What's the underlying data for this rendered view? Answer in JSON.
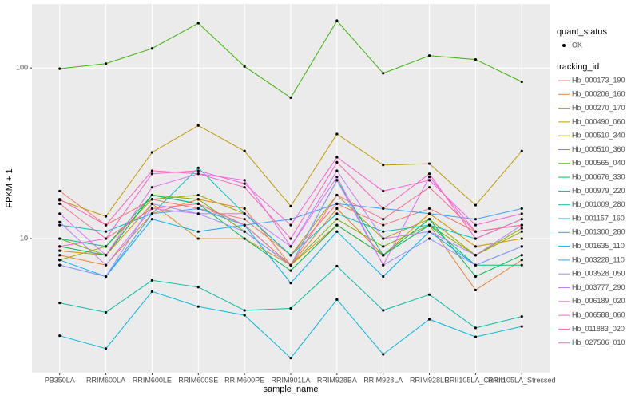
{
  "chart_data": {
    "type": "line",
    "log_y": true,
    "grid": true,
    "x_label": "sample_name",
    "y_label": "FPKM + 1",
    "legend_points_title": "quant_status",
    "legend_points_label": "OK",
    "legend_title": "tracking_id",
    "categories": [
      "PB350LA",
      "RRIM600LA",
      "RRIM600LE",
      "RRIM600SE",
      "RRIM600PE",
      "RRIM901LA",
      "RRIM928BA",
      "RRIM928LA",
      "RRIM928LE",
      "RRII105LA_Control",
      "RRII105LA_Stressed"
    ],
    "ylim": [
      1.64,
      237
    ],
    "yticks": [
      10,
      100
    ],
    "series": [
      {
        "name": "Hb_000173_190",
        "color": "#F8766D",
        "values": [
          19,
          12,
          17,
          15,
          13,
          8,
          16,
          12,
          15,
          11,
          12
        ]
      },
      {
        "name": "Hb_000206_160",
        "color": "#EA8331",
        "values": [
          8,
          7,
          14,
          17,
          15,
          7,
          15,
          8,
          12,
          5,
          7.5
        ]
      },
      {
        "name": "Hb_000270_170",
        "color": "#D89000",
        "values": [
          8.5,
          8,
          16,
          10,
          10,
          7,
          12,
          8,
          14,
          9,
          10
        ]
      },
      {
        "name": "Hb_000490_060",
        "color": "#C09B00",
        "values": [
          16.8,
          13.5,
          32,
          46,
          32.6,
          15.5,
          41,
          27,
          27.5,
          15.7,
          32.6
        ]
      },
      {
        "name": "Hb_000510_340",
        "color": "#A3A500",
        "values": [
          7.5,
          9,
          17,
          18,
          14,
          8,
          18,
          10,
          13,
          8,
          11
        ]
      },
      {
        "name": "Hb_000510_360",
        "color": "#7CAE00",
        "values": [
          10,
          8,
          18,
          17,
          11,
          7,
          13,
          9,
          12,
          8,
          11.5
        ]
      },
      {
        "name": "Hb_000565_040",
        "color": "#39B600",
        "values": [
          99,
          106,
          130,
          183,
          102,
          67,
          189,
          93,
          118,
          112,
          83
        ]
      },
      {
        "name": "Hb_000676_330",
        "color": "#00BB4E",
        "values": [
          9,
          8,
          18,
          16,
          10,
          6.5,
          12,
          8,
          13,
          6,
          8
        ]
      },
      {
        "name": "Hb_000979_220",
        "color": "#00BF7D",
        "values": [
          10,
          9,
          18,
          16,
          12,
          7,
          22,
          8,
          12,
          7,
          7
        ]
      },
      {
        "name": "Hb_001009_280",
        "color": "#00C1A3",
        "values": [
          4.2,
          3.7,
          5.7,
          5.2,
          3.8,
          3.9,
          6.9,
          3.8,
          4.7,
          3.0,
          3.5
        ]
      },
      {
        "name": "Hb_001157_160",
        "color": "#00BFC4",
        "values": [
          12,
          11,
          14,
          26,
          14,
          8,
          14,
          11,
          12,
          10,
          13
        ]
      },
      {
        "name": "Hb_001300_280",
        "color": "#00BAE0",
        "values": [
          2.7,
          2.27,
          4.9,
          4.0,
          3.56,
          2.0,
          4.4,
          2.1,
          3.37,
          2.66,
          3.06
        ]
      },
      {
        "name": "Hb_001635_110",
        "color": "#00B0F6",
        "values": [
          7.5,
          6,
          13,
          11,
          12,
          5.5,
          11,
          6,
          11,
          7,
          9
        ]
      },
      {
        "name": "Hb_003228_110",
        "color": "#35A2FF",
        "values": [
          7,
          6,
          14,
          15,
          12,
          13,
          16,
          15,
          14,
          13,
          15
        ]
      },
      {
        "name": "Hb_003528_050",
        "color": "#9590FF",
        "values": [
          7,
          6,
          16,
          14,
          11,
          7,
          22,
          7,
          10,
          7,
          9
        ]
      },
      {
        "name": "Hb_003777_290",
        "color": "#C77CFF",
        "values": [
          12.5,
          7,
          15,
          14,
          14,
          9,
          25,
          10,
          11,
          8,
          12
        ]
      },
      {
        "name": "Hb_006189_020",
        "color": "#E76BF3",
        "values": [
          14,
          8,
          20,
          24,
          22,
          9,
          23,
          7,
          23,
          11,
          12
        ]
      },
      {
        "name": "Hb_006588_060",
        "color": "#FA62DB",
        "values": [
          9,
          10,
          24,
          25,
          21,
          12,
          30,
          19,
          22,
          12,
          14
        ]
      },
      {
        "name": "Hb_011883_020",
        "color": "#FF62BC",
        "values": [
          17,
          12,
          25,
          24,
          20,
          10,
          28,
          15,
          24,
          10,
          13
        ]
      },
      {
        "name": "Hb_027506_010",
        "color": "#FF6C91",
        "values": [
          16,
          10,
          15,
          16,
          12,
          7,
          18,
          13,
          20,
          11,
          12
        ]
      }
    ]
  }
}
